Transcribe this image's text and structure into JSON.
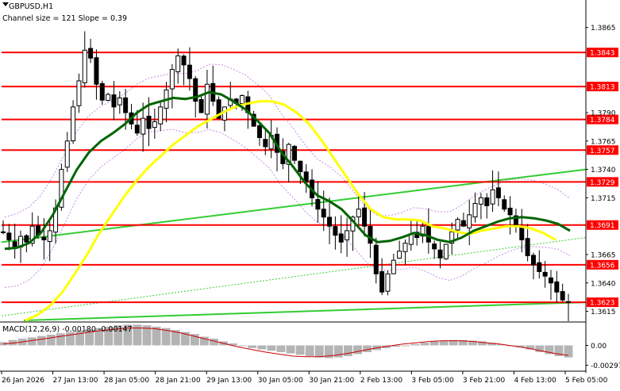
{
  "header": {
    "symbol_tf": "GBPUSD,H1",
    "channel_info": "Channel size = 121 Slope = 0.39"
  },
  "macd_label": "MACD(12,26,9) -0.00180 -0.00147",
  "colors": {
    "level_line": "#ff0000",
    "level_tag_bg": "#ff0000",
    "level_tag_text": "#ffffff",
    "ma_slow": "#ffff00",
    "ma_fast": "#006400",
    "trendline": "#32cd32",
    "envelope": "#c58be6",
    "candles": "#000000",
    "macd_hist": "#b4b4b4",
    "macd_signal": "#cc0000"
  },
  "chart_data": {
    "type": "candlestick",
    "symbol": "GBPUSD",
    "timeframe": "H1",
    "ylim": [
      1.3607,
      1.3885
    ],
    "y_ticks": [
      {
        "value": 1.3865,
        "label": "1.3865"
      },
      {
        "value": 1.379,
        "label": "1.3790"
      },
      {
        "value": 1.3765,
        "label": "1.3765"
      },
      {
        "value": 1.374,
        "label": "1.3740"
      },
      {
        "value": 1.3715,
        "label": "1.3715"
      },
      {
        "value": 1.3665,
        "label": "1.3665"
      },
      {
        "value": 1.364,
        "label": "1.3640"
      },
      {
        "value": 1.3615,
        "label": "1.3615"
      }
    ],
    "levels": [
      {
        "value": 1.3843,
        "label": "1.3843"
      },
      {
        "value": 1.3813,
        "label": "1.3813"
      },
      {
        "value": 1.3784,
        "label": "1.3784"
      },
      {
        "value": 1.3757,
        "label": "1.3757"
      },
      {
        "value": 1.3729,
        "label": "1.3729"
      },
      {
        "value": 1.3691,
        "label": "1.3691"
      },
      {
        "value": 1.3656,
        "label": "1.3656"
      },
      {
        "value": 1.3623,
        "label": "1.3623"
      }
    ],
    "x_labels": [
      "26 Jan 2026",
      "27 Jan 13:00",
      "28 Jan 05:00",
      "28 Jan 21:00",
      "29 Jan 13:00",
      "30 Jan 05:00",
      "30 Jan 21:00",
      "2 Feb 13:00",
      "3 Feb 05:00",
      "3 Feb 21:00",
      "4 Feb 13:00",
      "5 Feb 05:00"
    ],
    "close_path": [
      1.3685,
      1.3678,
      1.3672,
      1.3681,
      1.3676,
      1.369,
      1.3682,
      1.3678,
      1.3686,
      1.3706,
      1.374,
      1.3765,
      1.3795,
      1.3818,
      1.3845,
      1.3838,
      1.3815,
      1.3801,
      1.3806,
      1.3795,
      1.3803,
      1.379,
      1.378,
      1.3772,
      1.3785,
      1.3776,
      1.3782,
      1.3795,
      1.381,
      1.3828,
      1.384,
      1.3832,
      1.382,
      1.38,
      1.379,
      1.3815,
      1.38,
      1.3785,
      1.3795,
      1.3802,
      1.3798,
      1.3805,
      1.379,
      1.3778,
      1.3768,
      1.376,
      1.377,
      1.3755,
      1.3745,
      1.3762,
      1.3748,
      1.3738,
      1.3729,
      1.3715,
      1.3705,
      1.3698,
      1.369,
      1.3682,
      1.3676,
      1.3686,
      1.3698,
      1.3705,
      1.369,
      1.3675,
      1.3648,
      1.3632,
      1.3648,
      1.366,
      1.3668,
      1.3675,
      1.3683,
      1.368,
      1.369,
      1.3676,
      1.367,
      1.3662,
      1.3674,
      1.3685,
      1.3696,
      1.369,
      1.37,
      1.371,
      1.3715,
      1.3708,
      1.3722,
      1.3715,
      1.3705,
      1.37,
      1.369,
      1.3678,
      1.3664,
      1.3656,
      1.365,
      1.3646,
      1.364,
      1.3632,
      1.3625,
      1.3623
    ],
    "ma_slow": [
      1.3607,
      1.3612,
      1.362,
      1.3632,
      1.3648,
      1.3665,
      1.3684,
      1.37,
      1.3716,
      1.373,
      1.3742,
      1.3752,
      1.3762,
      1.377,
      1.3778,
      1.3784,
      1.379,
      1.3795,
      1.3798,
      1.38,
      1.38,
      1.3797,
      1.379,
      1.378,
      1.3766,
      1.375,
      1.3734,
      1.3718,
      1.3705,
      1.3698,
      1.3696,
      1.3696,
      1.3695,
      1.369,
      1.3688,
      1.3685,
      1.3683,
      1.3686,
      1.3688,
      1.369,
      1.369,
      1.3688,
      1.3684,
      1.3678
    ],
    "ma_fast": [
      1.367,
      1.3671,
      1.3675,
      1.3684,
      1.37,
      1.372,
      1.374,
      1.3755,
      1.3765,
      1.3772,
      1.378,
      1.379,
      1.3797,
      1.38,
      1.3803,
      1.3802,
      1.3804,
      1.3808,
      1.3806,
      1.38,
      1.3793,
      1.3783,
      1.3772,
      1.3755,
      1.3742,
      1.3728,
      1.3717,
      1.3712,
      1.3705,
      1.3694,
      1.3682,
      1.3676,
      1.3677,
      1.368,
      1.3684,
      1.3682,
      1.3678,
      1.3676,
      1.368,
      1.3686,
      1.369,
      1.3694,
      1.3697,
      1.3698,
      1.3697,
      1.3695,
      1.3692,
      1.3686
    ],
    "trendline_upper": [
      [
        1.3676,
        1.374
      ]
    ],
    "trendline_lower": [
      [
        1.3607,
        1.3623
      ]
    ],
    "macd": {
      "ylim": [
        -0.0035,
        0.0035
      ],
      "y_ticks": [
        {
          "value": 0.0,
          "label": "0.00"
        },
        {
          "value": -0.00297,
          "label": "-0.00297"
        }
      ],
      "hist": [
        0.0005,
        0.0008,
        0.001,
        0.0012,
        0.0014,
        0.0016,
        0.0018,
        0.002,
        0.0022,
        0.0024,
        0.0026,
        0.0028,
        0.003,
        0.0031,
        0.0031,
        0.003,
        0.0028,
        0.0026,
        0.0023,
        0.002,
        0.0017,
        0.0013,
        0.001,
        0.0006,
        0.0003,
        -0.0001,
        -0.0004,
        -0.0006,
        -0.0008,
        -0.001,
        -0.0012,
        -0.0014,
        -0.0016,
        -0.0018,
        -0.0019,
        -0.0018,
        -0.0016,
        -0.0013,
        -0.001,
        -0.0007,
        -0.0004,
        -0.0002,
        0.0,
        0.0002,
        0.0004,
        0.0006,
        0.0007,
        0.0008,
        0.0008,
        0.0007,
        0.0006,
        0.0004,
        0.0002,
        0.0,
        -0.0003,
        -0.0006,
        -0.001,
        -0.0013,
        -0.0016,
        -0.0018
      ],
      "signal": [
        0.0002,
        0.0004,
        0.0007,
        0.001,
        0.0013,
        0.0016,
        0.0019,
        0.0022,
        0.0024,
        0.0026,
        0.0026,
        0.0025,
        0.0022,
        0.0018,
        0.0013,
        0.0008,
        0.0003,
        -0.0002,
        -0.0006,
        -0.001,
        -0.0013,
        -0.0016,
        -0.0017,
        -0.0017,
        -0.0015,
        -0.0012,
        -0.0008,
        -0.0004,
        -0.0001,
        0.0002,
        0.0004,
        0.0006,
        0.0007,
        0.0007,
        0.0006,
        0.0004,
        0.0002,
        -0.0001,
        -0.0004,
        -0.0008,
        -0.0012,
        -0.0015
      ]
    }
  }
}
